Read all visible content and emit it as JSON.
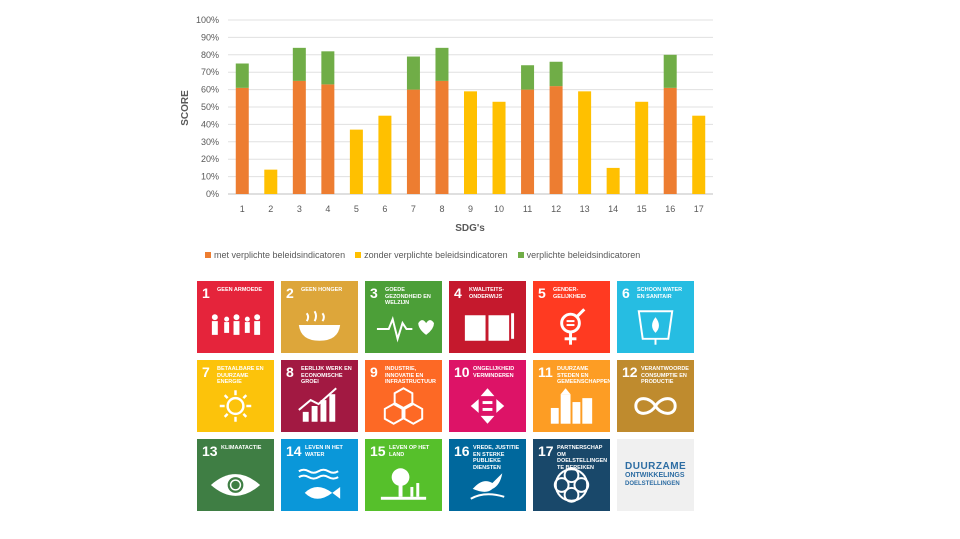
{
  "chart_data": {
    "type": "bar",
    "stacked": true,
    "categories": [
      "1",
      "2",
      "3",
      "4",
      "5",
      "6",
      "7",
      "8",
      "9",
      "10",
      "11",
      "12",
      "13",
      "14",
      "15",
      "16",
      "17"
    ],
    "series": [
      {
        "name": "met verplichte beleidsindicatoren",
        "color": "#ed7d31",
        "values": [
          61,
          0,
          65,
          63,
          0,
          0,
          60,
          65,
          0,
          0,
          60,
          62,
          0,
          0,
          0,
          61,
          0
        ]
      },
      {
        "name": "zonder verplichte beleidsindicatoren",
        "color": "#ffc000",
        "values": [
          0,
          14,
          0,
          0,
          37,
          45,
          0,
          0,
          59,
          53,
          0,
          0,
          59,
          15,
          53,
          0,
          45
        ]
      },
      {
        "name": "verplichte beleidsindicatoren",
        "color": "#70ad47",
        "values": [
          14,
          0,
          19,
          19,
          0,
          0,
          19,
          19,
          0,
          0,
          14,
          14,
          0,
          0,
          0,
          19,
          0
        ]
      }
    ],
    "yticks": [
      "0%",
      "10%",
      "20%",
      "30%",
      "40%",
      "50%",
      "60%",
      "70%",
      "80%",
      "90%",
      "100%"
    ],
    "ylim": [
      0,
      100
    ],
    "xlabel": "SDG's",
    "ylabel": "SCORE",
    "grid": true,
    "legend_position": "bottom"
  },
  "sdg_tiles": [
    {
      "num": "1",
      "title": "Geen armoede",
      "color": "#e5243b",
      "icon": "family-icon"
    },
    {
      "num": "2",
      "title": "Geen honger",
      "color": "#dda63a",
      "icon": "bowl-icon"
    },
    {
      "num": "3",
      "title": "Goede gezondheid en welzijn",
      "color": "#4c9f38",
      "icon": "heartbeat-icon"
    },
    {
      "num": "4",
      "title": "Kwaliteits-onderwijs",
      "color": "#c5192d",
      "icon": "book-icon"
    },
    {
      "num": "5",
      "title": "Gender-gelijkheid",
      "color": "#ff3a21",
      "icon": "gender-equality-icon"
    },
    {
      "num": "6",
      "title": "Schoon water en sanitair",
      "color": "#26bde2",
      "icon": "water-drop-icon"
    },
    {
      "num": "7",
      "title": "Betaalbare en duurzame energie",
      "color": "#fcc30b",
      "icon": "sun-icon"
    },
    {
      "num": "8",
      "title": "Eerlijk werk en economische groei",
      "color": "#a21942",
      "icon": "growth-chart-icon"
    },
    {
      "num": "9",
      "title": "Industrie, innovatie en infrastructuur",
      "color": "#fd6925",
      "icon": "cubes-icon"
    },
    {
      "num": "10",
      "title": "Ongelijkheid verminderen",
      "color": "#dd1367",
      "icon": "equal-arrows-icon"
    },
    {
      "num": "11",
      "title": "Duurzame steden en gemeenschappen",
      "color": "#fd9d24",
      "icon": "city-icon"
    },
    {
      "num": "12",
      "title": "Verantwoorde consumptie en productie",
      "color": "#bf8b2e",
      "icon": "infinity-icon"
    },
    {
      "num": "13",
      "title": "Klimaatactie",
      "color": "#3f7e44",
      "icon": "eye-globe-icon"
    },
    {
      "num": "14",
      "title": "Leven in het water",
      "color": "#0a97d9",
      "icon": "fish-icon"
    },
    {
      "num": "15",
      "title": "Leven op het land",
      "color": "#56c02b",
      "icon": "tree-icon"
    },
    {
      "num": "16",
      "title": "Vrede, justitie en sterke publieke diensten",
      "color": "#00689d",
      "icon": "dove-icon"
    },
    {
      "num": "17",
      "title": "Partnerschap om doelstellingen te bereiken",
      "color": "#19486a",
      "icon": "rings-icon"
    }
  ],
  "logo": {
    "line1": "DUURZAME",
    "line2": "ONTWIKKELINGS",
    "line3": "DOELSTELLINGEN"
  }
}
